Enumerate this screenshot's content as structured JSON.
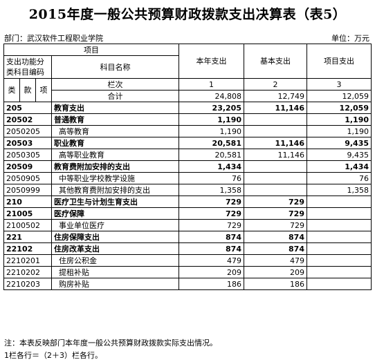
{
  "title": "2015年度一般公共预算财政拨款支出决算表（表5）",
  "department": "部门：武汉软件工程职业学院",
  "unit": "单位：万元",
  "header": {
    "item": "项目",
    "code_label_1": "支出功能分",
    "code_label_2": "类科目编码",
    "subject_name": "科目名称",
    "col_total": "本年支出",
    "col_basic": "基本支出",
    "col_project": "项目支出",
    "lei": "类",
    "kuan": "款",
    "xiang": "项",
    "column_index": "栏次",
    "idx1": "1",
    "idx2": "2",
    "idx3": "3",
    "sum_label": "合计",
    "sum_total": "24,808",
    "sum_basic": "12,749",
    "sum_project": "12,059"
  },
  "rows": [
    {
      "code": "205",
      "name": "教育支出",
      "total": "23,205",
      "basic": "11,146",
      "project": "12,059",
      "level": 1
    },
    {
      "code": "20502",
      "name": "普通教育",
      "total": "1,190",
      "basic": "",
      "project": "1,190",
      "level": 1
    },
    {
      "code": "2050205",
      "name": "高等教育",
      "total": "1,190",
      "basic": "",
      "project": "1,190",
      "level": 3
    },
    {
      "code": "20503",
      "name": "职业教育",
      "total": "20,581",
      "basic": "11,146",
      "project": "9,435",
      "level": 1
    },
    {
      "code": "2050305",
      "name": "高等职业教育",
      "total": "20,581",
      "basic": "11,146",
      "project": "9,435",
      "level": 3
    },
    {
      "code": "20509",
      "name": "教育费附加安排的支出",
      "total": "1,434",
      "basic": "",
      "project": "1,434",
      "level": 1
    },
    {
      "code": "2050905",
      "name": "中等职业学校教学设施",
      "total": "76",
      "basic": "",
      "project": "76",
      "level": 3
    },
    {
      "code": "2050999",
      "name": "其他教育费附加安排的支出",
      "total": "1,358",
      "basic": "",
      "project": "1,358",
      "level": 3
    },
    {
      "code": "210",
      "name": "医疗卫生与计划生育支出",
      "total": "729",
      "basic": "729",
      "project": "",
      "level": 1
    },
    {
      "code": "21005",
      "name": "医疗保障",
      "total": "729",
      "basic": "729",
      "project": "",
      "level": 1
    },
    {
      "code": "2100502",
      "name": "事业单位医疗",
      "total": "729",
      "basic": "729",
      "project": "",
      "level": 3
    },
    {
      "code": "221",
      "name": "住房保障支出",
      "total": "874",
      "basic": "874",
      "project": "",
      "level": 1
    },
    {
      "code": "22102",
      "name": "住房改革支出",
      "total": "874",
      "basic": "874",
      "project": "",
      "level": 1
    },
    {
      "code": "2210201",
      "name": "住房公积金",
      "total": "479",
      "basic": "479",
      "project": "",
      "level": 3
    },
    {
      "code": "2210202",
      "name": "提租补贴",
      "total": "209",
      "basic": "209",
      "project": "",
      "level": 3
    },
    {
      "code": "2210203",
      "name": "购房补贴",
      "total": "186",
      "basic": "186",
      "project": "",
      "level": 3
    }
  ],
  "notes": [
    "注：本表反映部门本年度一般公共预算财政拨款实际支出情况。",
    "1栏各行＝（2＋3）栏各行。"
  ]
}
